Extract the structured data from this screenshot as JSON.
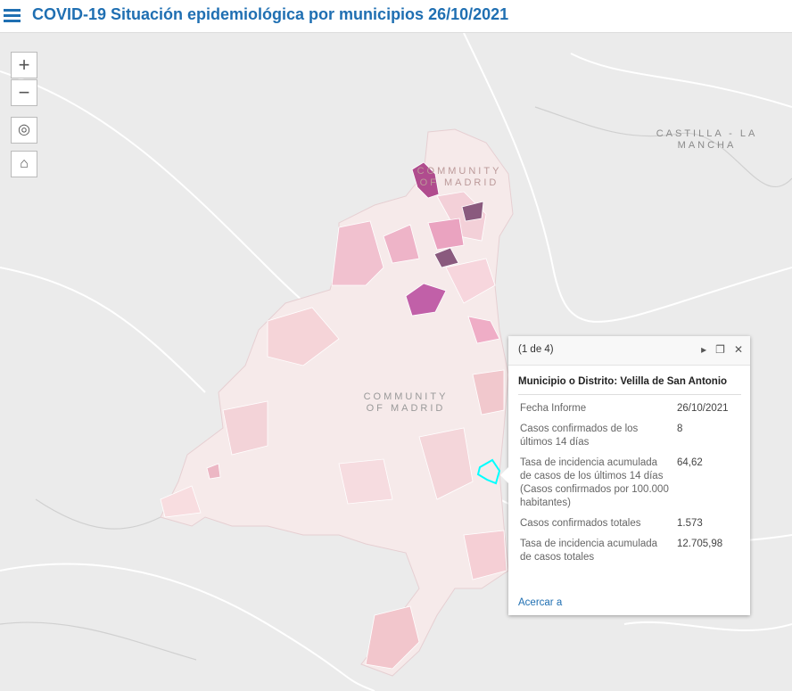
{
  "header": {
    "title": "COVID-19 Situación epidemiológica por municipios 26/10/2021"
  },
  "map_controls": {
    "zoom_in": "+",
    "zoom_out": "−"
  },
  "map_labels": [
    "CASTILLA - LA MANCHA",
    "COMMUNITY OF MADRID",
    "COMMUNITY OF MADRID"
  ],
  "popup": {
    "counter": "(1 de 4)",
    "title": "Municipio o Distrito: Velilla de San Antonio",
    "rows": [
      [
        "Fecha Informe",
        "26/10/2021"
      ],
      [
        "Casos confirmados de los últimos 14 días",
        "8"
      ],
      [
        "Tasa de incidencia acumulada de casos de los últimos 14 días (Casos confirmados por 100.000 habitantes)",
        "64,62"
      ],
      [
        "Casos confirmados totales",
        "1.573"
      ],
      [
        "Tasa de incidencia acumulada de casos totales",
        "12.705,98"
      ]
    ],
    "action": "Acercar a"
  }
}
